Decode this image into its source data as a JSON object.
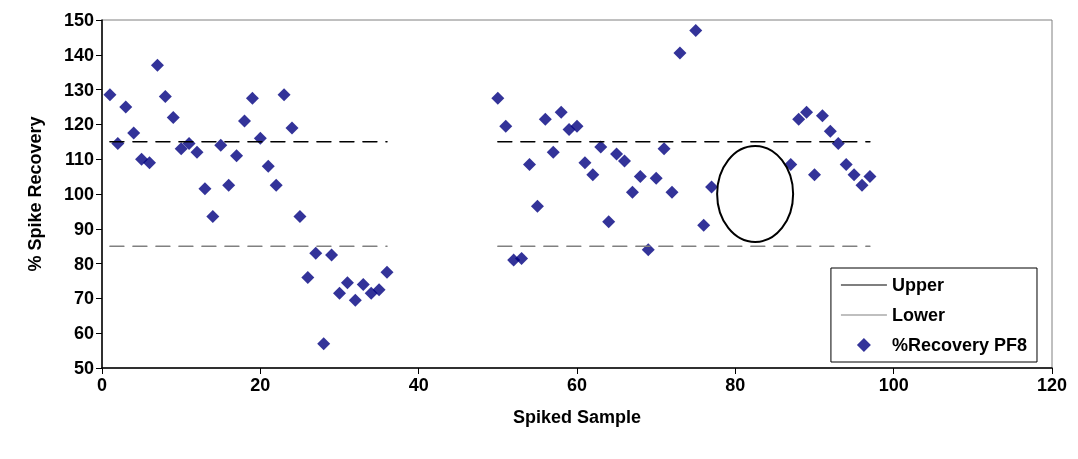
{
  "chart_data": {
    "type": "scatter",
    "xlabel": "Spiked Sample",
    "ylabel": "% Spike Recovery",
    "xlim": [
      0,
      120
    ],
    "xticks": [
      0,
      20,
      40,
      60,
      80,
      100,
      120
    ],
    "ylim": [
      50,
      150
    ],
    "yticks": [
      50,
      60,
      70,
      80,
      90,
      100,
      110,
      120,
      130,
      140,
      150
    ],
    "grid": false,
    "legend": "bottom right",
    "marker": "diamond",
    "series": [
      {
        "name": "Upper",
        "type": "line",
        "color": "#000000",
        "line_style": "dashed",
        "marker": "none",
        "x": [
          1,
          36,
          null,
          50,
          97
        ],
        "values": [
          115,
          115,
          null,
          115,
          115
        ]
      },
      {
        "name": "Lower",
        "type": "line",
        "color": "#808080",
        "line_style": "dashed",
        "marker": "none",
        "x": [
          1,
          36,
          null,
          50,
          97
        ],
        "values": [
          85,
          85,
          null,
          85,
          85
        ]
      },
      {
        "name": "%Recovery PF8",
        "type": "scatter",
        "color": "#000080",
        "x": [
          1,
          2,
          3,
          4,
          5,
          6,
          7,
          8,
          9,
          10,
          11,
          12,
          13,
          14,
          15,
          16,
          17,
          18,
          19,
          20,
          21,
          22,
          23,
          24,
          25,
          26,
          27,
          28,
          29,
          30,
          31,
          32,
          33,
          34,
          35,
          36,
          50,
          51,
          52,
          53,
          54,
          55,
          56,
          57,
          58,
          59,
          60,
          61,
          62,
          63,
          64,
          65,
          66,
          67,
          68,
          69,
          70,
          71,
          72,
          73,
          75,
          76,
          77,
          87,
          88,
          89,
          90,
          91,
          92,
          93,
          94,
          95,
          96,
          97
        ],
        "values": [
          128.5,
          114.5,
          125,
          117.5,
          110,
          109,
          137,
          128,
          122,
          113,
          114.5,
          112,
          101.5,
          93.5,
          114,
          102.5,
          111,
          121,
          127.5,
          116,
          108,
          102.5,
          128.5,
          119,
          93.5,
          76,
          83,
          57,
          82.5,
          71.5,
          74.5,
          69.5,
          74,
          71.5,
          72.5,
          77.5,
          127.5,
          119.5,
          81,
          81.5,
          108.5,
          96.5,
          121.5,
          112,
          123.5,
          118.5,
          119.5,
          109,
          105.5,
          113.5,
          92,
          111.5,
          109.5,
          100.5,
          105,
          84,
          104.5,
          113,
          100.5,
          140.5,
          147,
          91,
          102,
          108.5,
          121.5,
          123.5,
          105.5,
          122.5,
          118,
          114.5,
          108.5,
          105.5,
          102.5,
          105
        ]
      }
    ]
  }
}
